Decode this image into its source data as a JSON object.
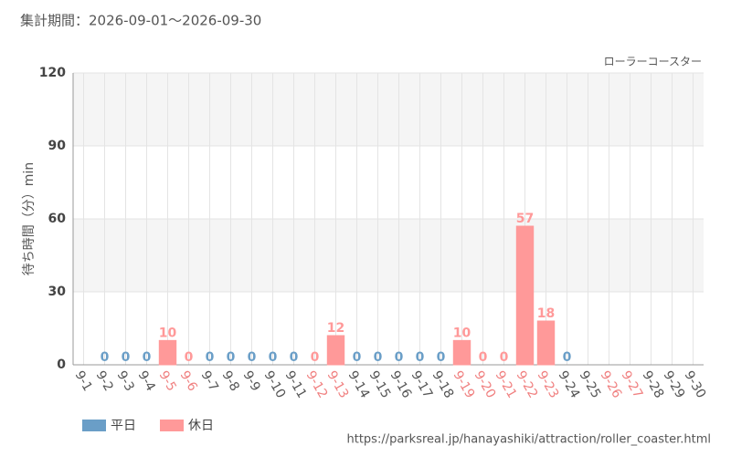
{
  "chart_data": {
    "type": "bar",
    "title": "集計期間：2026-09-01～2026-09-30",
    "subtitle": "ローラーコースター",
    "y_label": "待ち時間（分）min",
    "source": "https://parksreal.jp/hanayashiki/attraction/roller_coaster.html",
    "categories": [
      "9-1",
      "9-2",
      "9-3",
      "9-4",
      "9-5",
      "9-6",
      "9-7",
      "9-8",
      "9-9",
      "9-10",
      "9-11",
      "9-12",
      "9-13",
      "9-14",
      "9-15",
      "9-16",
      "9-17",
      "9-18",
      "9-19",
      "9-20",
      "9-21",
      "9-22",
      "9-23",
      "9-24",
      "9-25",
      "9-26",
      "9-27",
      "9-28",
      "9-29",
      "9-30"
    ],
    "category_colors": [
      "#555",
      "#555",
      "#555",
      "#555",
      "#f08080",
      "#f08080",
      "#555",
      "#555",
      "#555",
      "#555",
      "#555",
      "#f08080",
      "#f08080",
      "#555",
      "#555",
      "#555",
      "#555",
      "#555",
      "#f08080",
      "#f08080",
      "#f08080",
      "#f08080",
      "#f08080",
      "#555",
      "#555",
      "#f08080",
      "#f08080",
      "#555",
      "#555",
      "#555"
    ],
    "series": [
      {
        "name": "平日",
        "color": "#6a9ec7",
        "values": [
          null,
          0,
          0,
          0,
          null,
          null,
          0,
          0,
          0,
          0,
          0,
          null,
          null,
          0,
          0,
          0,
          0,
          0,
          null,
          null,
          null,
          null,
          null,
          0,
          null,
          null,
          null,
          null,
          null,
          null
        ]
      },
      {
        "name": "休日",
        "color": "#ff9999",
        "values": [
          null,
          null,
          null,
          null,
          10,
          0,
          null,
          null,
          null,
          null,
          null,
          0,
          12,
          null,
          null,
          null,
          null,
          null,
          10,
          0,
          0,
          57,
          18,
          null,
          null,
          null,
          null,
          null,
          null,
          null
        ]
      }
    ],
    "ylim": [
      0,
      120
    ],
    "yticks": [
      0,
      30,
      60,
      90,
      120
    ],
    "grid": true,
    "legend": "bottom-left"
  }
}
